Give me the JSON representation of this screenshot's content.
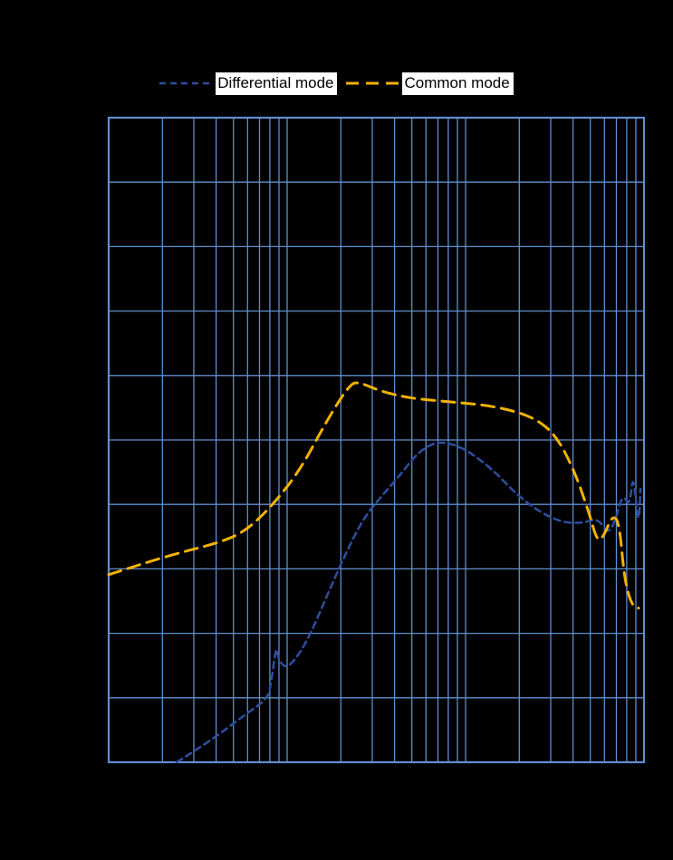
{
  "colors": {
    "background": "#000000",
    "grid": "#5e8fce",
    "plot_border": "#5e8fce",
    "legend_bg": "#ffffff",
    "legend_text": "#000000"
  },
  "legend": {
    "items": [
      {
        "label": "Differential mode",
        "color": "#2e4ea1",
        "dash": "7 5",
        "stroke_width": 2.5
      },
      {
        "label": "Common mode",
        "color": "#f2b200",
        "dash": "14 8",
        "stroke_width": 3
      }
    ]
  },
  "chart_data": {
    "type": "line",
    "title": "",
    "xlabel": "",
    "ylabel": "",
    "x_scale": "log",
    "x_decades": 3,
    "y_divisions": 10,
    "x_tick_labels_visible": false,
    "y_tick_labels_visible": false,
    "grid": "on",
    "legend_position": "top-center",
    "series": [
      {
        "name": "Differential mode",
        "color": "#2e4ea1",
        "dash": "7 5",
        "stroke_width": 2.5,
        "points_decade_units": [
          [
            0.38,
            0.0
          ],
          [
            0.56,
            0.31
          ],
          [
            0.76,
            0.73
          ],
          [
            0.89,
            0.98
          ],
          [
            0.91,
            1.22
          ],
          [
            0.94,
            1.83
          ],
          [
            0.95,
            1.6
          ],
          [
            0.99,
            1.46
          ],
          [
            1.04,
            1.57
          ],
          [
            1.12,
            1.92
          ],
          [
            1.22,
            2.56
          ],
          [
            1.32,
            3.19
          ],
          [
            1.42,
            3.75
          ],
          [
            1.52,
            4.1
          ],
          [
            1.62,
            4.41
          ],
          [
            1.73,
            4.8
          ],
          [
            1.83,
            4.97
          ],
          [
            1.93,
            4.94
          ],
          [
            2.03,
            4.8
          ],
          [
            2.16,
            4.52
          ],
          [
            2.28,
            4.17
          ],
          [
            2.41,
            3.89
          ],
          [
            2.54,
            3.72
          ],
          [
            2.66,
            3.71
          ],
          [
            2.74,
            3.79
          ],
          [
            2.8,
            3.54
          ],
          [
            2.84,
            3.75
          ],
          [
            2.88,
            4.17
          ],
          [
            2.92,
            3.96
          ],
          [
            2.94,
            4.52
          ],
          [
            2.97,
            3.61
          ],
          [
            2.98,
            4.24
          ]
        ]
      },
      {
        "name": "Common mode",
        "color": "#f2b200",
        "dash": "14 8",
        "stroke_width": 3,
        "points_decade_units": [
          [
            0.0,
            2.91
          ],
          [
            0.2,
            3.09
          ],
          [
            0.41,
            3.26
          ],
          [
            0.61,
            3.4
          ],
          [
            0.76,
            3.57
          ],
          [
            0.91,
            3.96
          ],
          [
            1.07,
            4.52
          ],
          [
            1.22,
            5.29
          ],
          [
            1.35,
            5.86
          ],
          [
            1.4,
            5.9
          ],
          [
            1.52,
            5.76
          ],
          [
            1.68,
            5.65
          ],
          [
            1.88,
            5.6
          ],
          [
            2.08,
            5.55
          ],
          [
            2.23,
            5.48
          ],
          [
            2.39,
            5.34
          ],
          [
            2.51,
            5.06
          ],
          [
            2.61,
            4.52
          ],
          [
            2.69,
            3.89
          ],
          [
            2.74,
            3.4
          ],
          [
            2.78,
            3.54
          ],
          [
            2.82,
            3.82
          ],
          [
            2.86,
            3.75
          ],
          [
            2.89,
            2.84
          ],
          [
            2.93,
            2.44
          ],
          [
            2.97,
            2.39
          ]
        ]
      }
    ]
  }
}
